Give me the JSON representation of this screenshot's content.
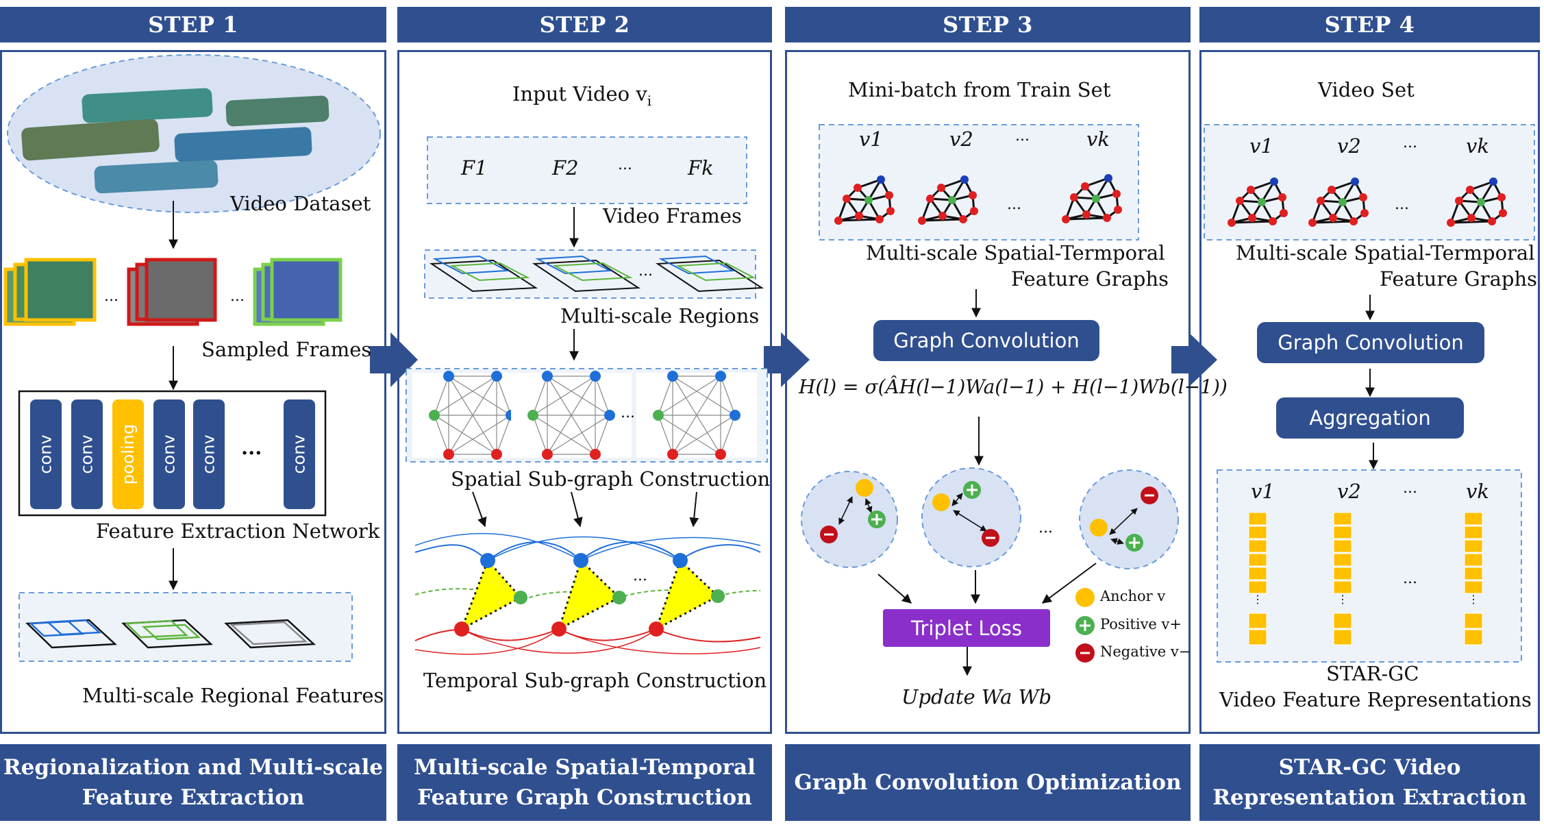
{
  "steps": [
    {
      "header": "STEP 1",
      "footer": [
        "Regionalization and Multi-scale",
        "Feature Extraction"
      ]
    },
    {
      "header": "STEP 2",
      "footer": [
        "Multi-scale Spatial-Temporal",
        "Feature Graph Construction"
      ]
    },
    {
      "header": "STEP 3",
      "footer": [
        "Graph Convolution Optimization"
      ]
    },
    {
      "header": "STEP 4",
      "footer": [
        "STAR-GC Video",
        "Representation Extraction"
      ]
    }
  ],
  "step1": {
    "video_dataset": "Video Dataset",
    "sampled_frames": "Sampled Frames",
    "ellipsis": "...",
    "conv_label": "conv",
    "pool_label": "pooling",
    "network_label": "Feature Extraction Network",
    "regional_label": "Multi-scale Regional Features"
  },
  "step2": {
    "input_video": "Input Video v",
    "input_sub": "i",
    "frames": [
      "F1",
      "F2",
      "...",
      "Fk"
    ],
    "frames_label": "Video Frames",
    "regions_label": "Multi-scale Regions",
    "spatial_label": "Spatial Sub-graph Construction",
    "temporal_label": "Temporal Sub-graph  Construction"
  },
  "step3": {
    "minibatch_label": "Mini-batch from Train Set",
    "videos": [
      "v1",
      "v2",
      "...",
      "vk"
    ],
    "graphs_label_1": "Multi-scale Spatial-Termporal",
    "graphs_label_2": "Feature Graphs",
    "graph_conv": "Graph Convolution",
    "formula": "H(l) = σ(ÂH(l−1)Wa(l−1) + H(l−1)Wb(l−1))",
    "triplet_loss": "Triplet Loss",
    "update_label": "Update Wa Wb",
    "legend": [
      "Anchor v",
      "Positive v+",
      "Negative v−"
    ]
  },
  "step4": {
    "video_set": "Video Set",
    "videos": [
      "v1",
      "v2",
      "...",
      "vk"
    ],
    "graphs_label_1": "Multi-scale Spatial-Termporal",
    "graphs_label_2": "Feature Graphs",
    "graph_conv": "Graph Convolution",
    "aggregation": "Aggregation",
    "out_label_1": "STAR-GC",
    "out_label_2": "Video Feature Representations"
  },
  "colors": {
    "brand": "#2f4f8f",
    "node_red": "#e02020",
    "node_blue": "#1f6fd8",
    "node_green": "#4caf50",
    "yellow": "#ffc000",
    "purple": "#8a2fc9"
  }
}
